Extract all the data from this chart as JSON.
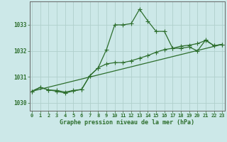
{
  "line1_x": [
    0,
    1,
    2,
    3,
    4,
    5,
    6,
    7,
    8,
    9,
    10,
    11,
    12,
    13,
    14,
    15,
    16,
    17,
    18,
    19,
    20,
    21,
    22,
    23
  ],
  "line1_y": [
    1030.45,
    1030.6,
    1030.5,
    1030.48,
    1030.42,
    1030.48,
    1030.52,
    1031.05,
    1031.35,
    1032.05,
    1033.0,
    1033.0,
    1033.05,
    1033.6,
    1033.15,
    1032.75,
    1032.75,
    1032.1,
    1032.1,
    1032.15,
    1032.0,
    1032.42,
    1032.2,
    1032.25
  ],
  "line2_x": [
    0,
    1,
    2,
    3,
    4,
    5,
    6,
    7,
    8,
    9,
    10,
    11,
    12,
    13,
    14,
    15,
    16,
    17,
    18,
    19,
    20,
    21,
    22,
    23
  ],
  "line2_y": [
    1030.45,
    1030.6,
    1030.5,
    1030.45,
    1030.38,
    1030.46,
    1030.52,
    1031.05,
    1031.35,
    1031.5,
    1031.55,
    1031.55,
    1031.62,
    1031.72,
    1031.82,
    1031.95,
    1032.05,
    1032.1,
    1032.18,
    1032.22,
    1032.28,
    1032.4,
    1032.2,
    1032.25
  ],
  "line3_x": [
    0,
    23
  ],
  "line3_y": [
    1030.45,
    1032.25
  ],
  "line_color": "#2d6e2d",
  "marker": "+",
  "marker_size": 4,
  "marker_lw": 0.8,
  "line_width": 0.9,
  "xlabel": "Graphe pression niveau de la mer (hPa)",
  "yticks": [
    1030,
    1031,
    1032,
    1033
  ],
  "xtick_labels": [
    "0",
    "1",
    "2",
    "3",
    "4",
    "5",
    "6",
    "7",
    "8",
    "9",
    "10",
    "11",
    "12",
    "13",
    "14",
    "15",
    "16",
    "17",
    "18",
    "19",
    "20",
    "21",
    "22",
    "23"
  ],
  "xticks": [
    0,
    1,
    2,
    3,
    4,
    5,
    6,
    7,
    8,
    9,
    10,
    11,
    12,
    13,
    14,
    15,
    16,
    17,
    18,
    19,
    20,
    21,
    22,
    23
  ],
  "xlim": [
    -0.3,
    23.3
  ],
  "ylim": [
    1029.7,
    1033.9
  ],
  "bg_color": "#cce8e8",
  "grid_color": "#b0d0cc",
  "spine_color": "#666666",
  "tick_color": "#2d6e2d",
  "label_color": "#2d6e2d",
  "xlabel_fontsize": 6.0,
  "ytick_fontsize": 5.5,
  "xtick_fontsize": 5.0
}
